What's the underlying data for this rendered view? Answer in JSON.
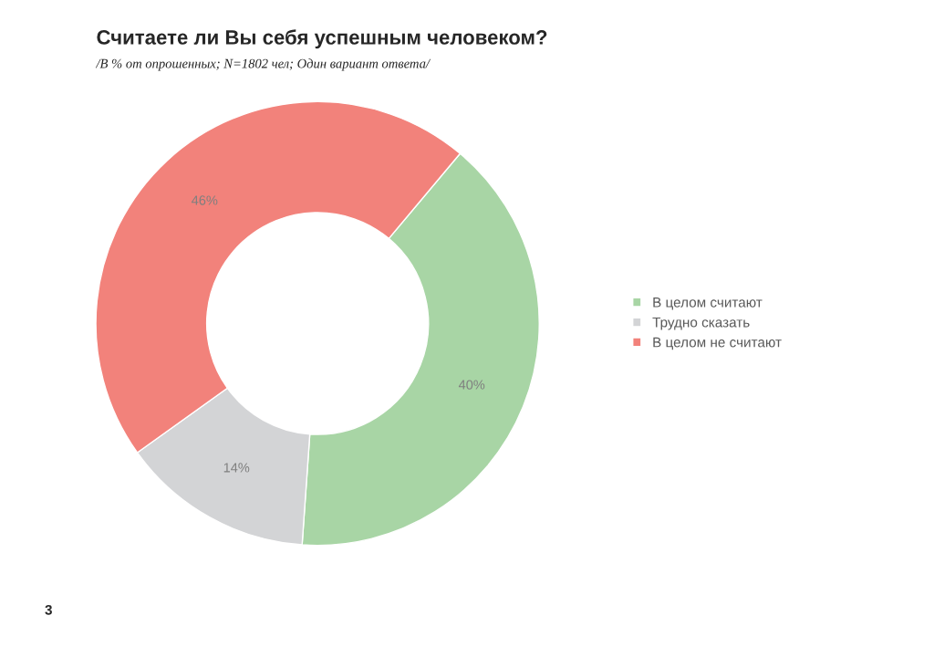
{
  "chart_data": {
    "type": "donut",
    "title": "Считаете ли Вы себя успешным человеком?",
    "subtitle": "/В % от опрошенных; N=1802 чел; Один вариант ответа/",
    "categories": [
      "В целом считают",
      "Трудно сказать",
      "В целом не считают"
    ],
    "values": [
      40,
      14,
      46
    ],
    "colors": [
      "#a8d5a5",
      "#d3d4d6",
      "#f2827b"
    ],
    "value_labels": [
      "40%",
      "14%",
      "46%"
    ],
    "legend": "right",
    "annotations": [
      "3"
    ]
  }
}
